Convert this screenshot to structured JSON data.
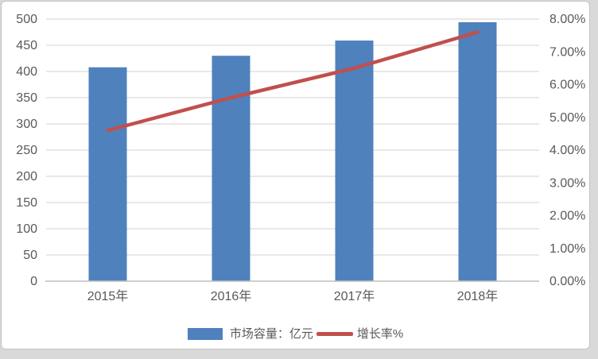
{
  "chart_data": {
    "type": "combo",
    "title": "",
    "xlabel": "",
    "ylabel": "",
    "categories": [
      "2015年",
      "2016年",
      "2017年",
      "2018年"
    ],
    "series": [
      {
        "name": "市场容量：亿元",
        "type": "bar",
        "axis": "left",
        "color": "#4f81bd",
        "values": [
          408,
          430,
          459,
          494
        ]
      },
      {
        "name": "增长率%",
        "type": "line",
        "axis": "right",
        "color": "#c0504d",
        "values": [
          4.6,
          5.6,
          6.5,
          7.6
        ]
      }
    ],
    "left_axis": {
      "min": 0,
      "max": 500,
      "step": 50,
      "tick_labels": [
        "0",
        "50",
        "100",
        "150",
        "200",
        "250",
        "300",
        "350",
        "400",
        "450",
        "500"
      ]
    },
    "right_axis": {
      "min": 0,
      "max": 8,
      "step": 1,
      "tick_labels": [
        "0.00%",
        "1.00%",
        "2.00%",
        "3.00%",
        "4.00%",
        "5.00%",
        "6.00%",
        "7.00%",
        "8.00%"
      ]
    },
    "grid": true,
    "legend_position": "bottom",
    "colors": {
      "grid": "#d9d9d9",
      "axis": "#bfbfbf",
      "text": "#595959",
      "background": "#ffffff",
      "border": "#c3c3c3"
    }
  }
}
